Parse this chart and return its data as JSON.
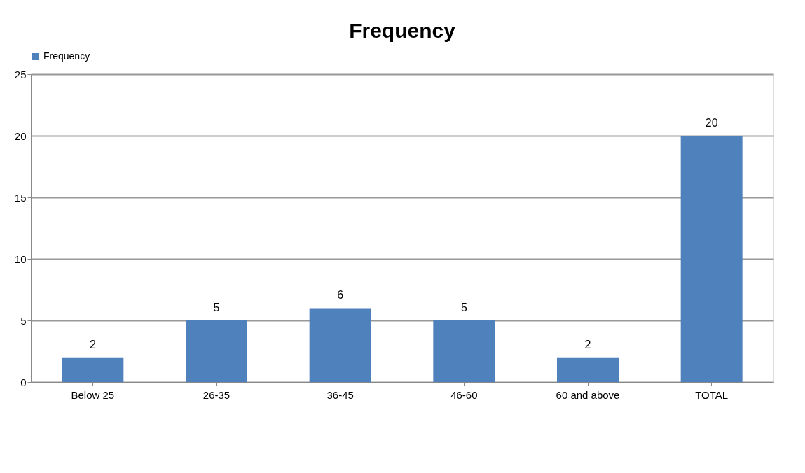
{
  "chart_data": {
    "type": "bar",
    "title": "Frequency",
    "categories": [
      "Below 25",
      "26-35",
      "36-45",
      "46-60",
      "60 and above",
      "TOTAL"
    ],
    "series": [
      {
        "name": "Frequency",
        "color": "#4f81bd",
        "values": [
          2,
          5,
          6,
          5,
          2,
          20
        ]
      }
    ],
    "ylim": [
      0,
      25
    ],
    "yticks": [
      0,
      5,
      10,
      15,
      20,
      25
    ],
    "grid": "y",
    "legend": "top",
    "data_labels": true
  }
}
